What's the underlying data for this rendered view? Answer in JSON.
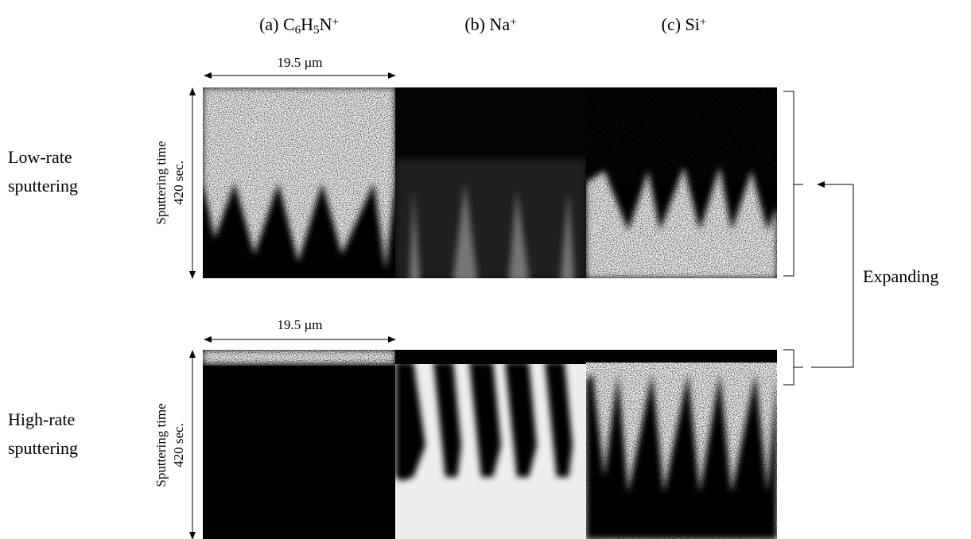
{
  "columns": [
    {
      "label": [
        {
          "text": "(a) C"
        },
        {
          "sub": "6"
        },
        {
          "text": "H"
        },
        {
          "sub": "5"
        },
        {
          "text": "N"
        },
        {
          "sup": "+"
        }
      ]
    },
    {
      "label": [
        {
          "text": "(b) Na"
        },
        {
          "sup": "+"
        }
      ]
    },
    {
      "label": [
        {
          "text": "(c) Si"
        },
        {
          "sup": "+"
        }
      ]
    }
  ],
  "rows": [
    {
      "label": [
        "Low-rate",
        "sputtering"
      ],
      "scale": "19.5 µm",
      "axis_title": "Sputtering time",
      "axis_value": "420 sec."
    },
    {
      "label": [
        "High-rate",
        "sputtering"
      ],
      "scale": "19.5 µm",
      "axis_title": "Sputtering time",
      "axis_value": "420 sec."
    }
  ],
  "annotation": "Expanding"
}
